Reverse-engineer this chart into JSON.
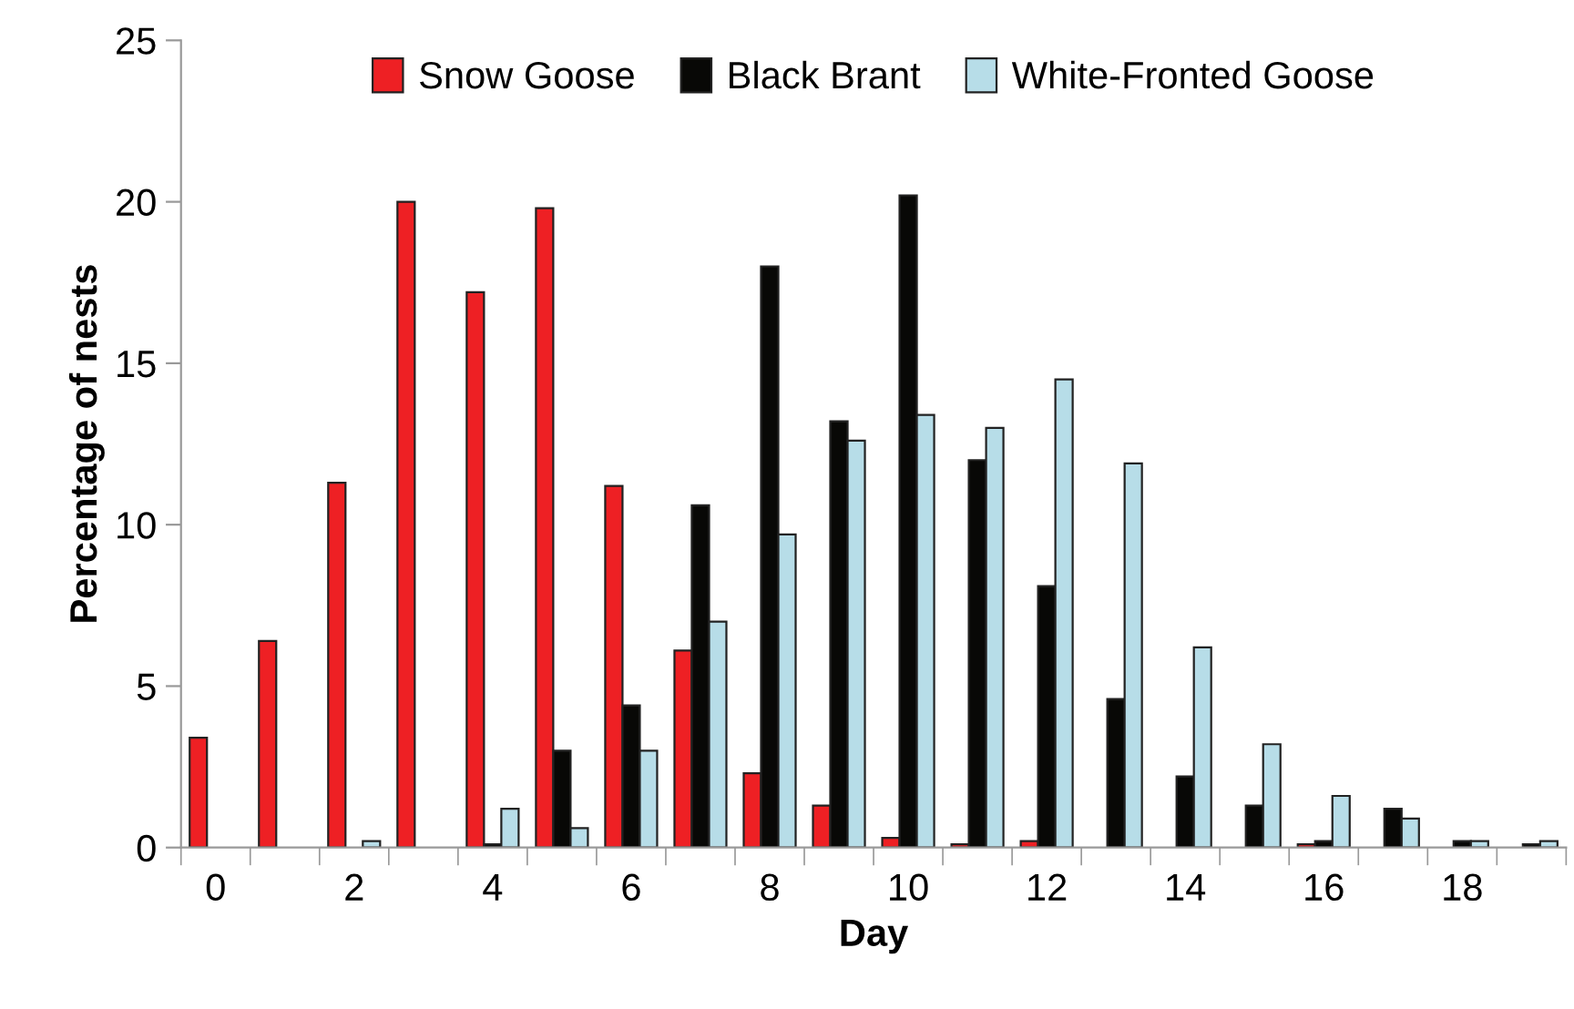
{
  "chart_data": {
    "type": "bar",
    "xlabel": "Day",
    "ylabel": "Percentage of nests",
    "categories": [
      "0",
      null,
      "2",
      null,
      "4",
      null,
      "6",
      null,
      "8",
      null,
      "10",
      null,
      "12",
      null,
      "14",
      null,
      "16",
      null,
      "18",
      null
    ],
    "series": [
      {
        "name": "Snow Goose",
        "color": "#ee2024",
        "values": [
          3.4,
          6.4,
          11.3,
          20.0,
          17.2,
          19.8,
          11.2,
          6.1,
          2.3,
          1.3,
          0.3,
          0.1,
          0.2,
          0,
          0,
          0,
          0.1,
          0,
          0,
          0
        ]
      },
      {
        "name": "Black Brant",
        "color": "#080806",
        "values": [
          0,
          0,
          0,
          0,
          0.1,
          3.0,
          4.4,
          10.6,
          18.0,
          13.2,
          20.2,
          12.0,
          8.1,
          4.6,
          2.2,
          1.3,
          0.2,
          1.2,
          0.2,
          0.1
        ]
      },
      {
        "name": "White-Fronted Goose",
        "color": "#b7dde8",
        "values": [
          0,
          0,
          0.2,
          0,
          1.2,
          0.6,
          3.0,
          7.0,
          9.7,
          12.6,
          13.4,
          13.0,
          14.5,
          11.9,
          6.2,
          3.2,
          1.6,
          0.9,
          0.2,
          0.2
        ]
      }
    ],
    "ylim": [
      0,
      25
    ],
    "yticks": [
      0,
      5,
      10,
      15,
      20,
      25
    ],
    "grid": false,
    "legend": "top"
  }
}
